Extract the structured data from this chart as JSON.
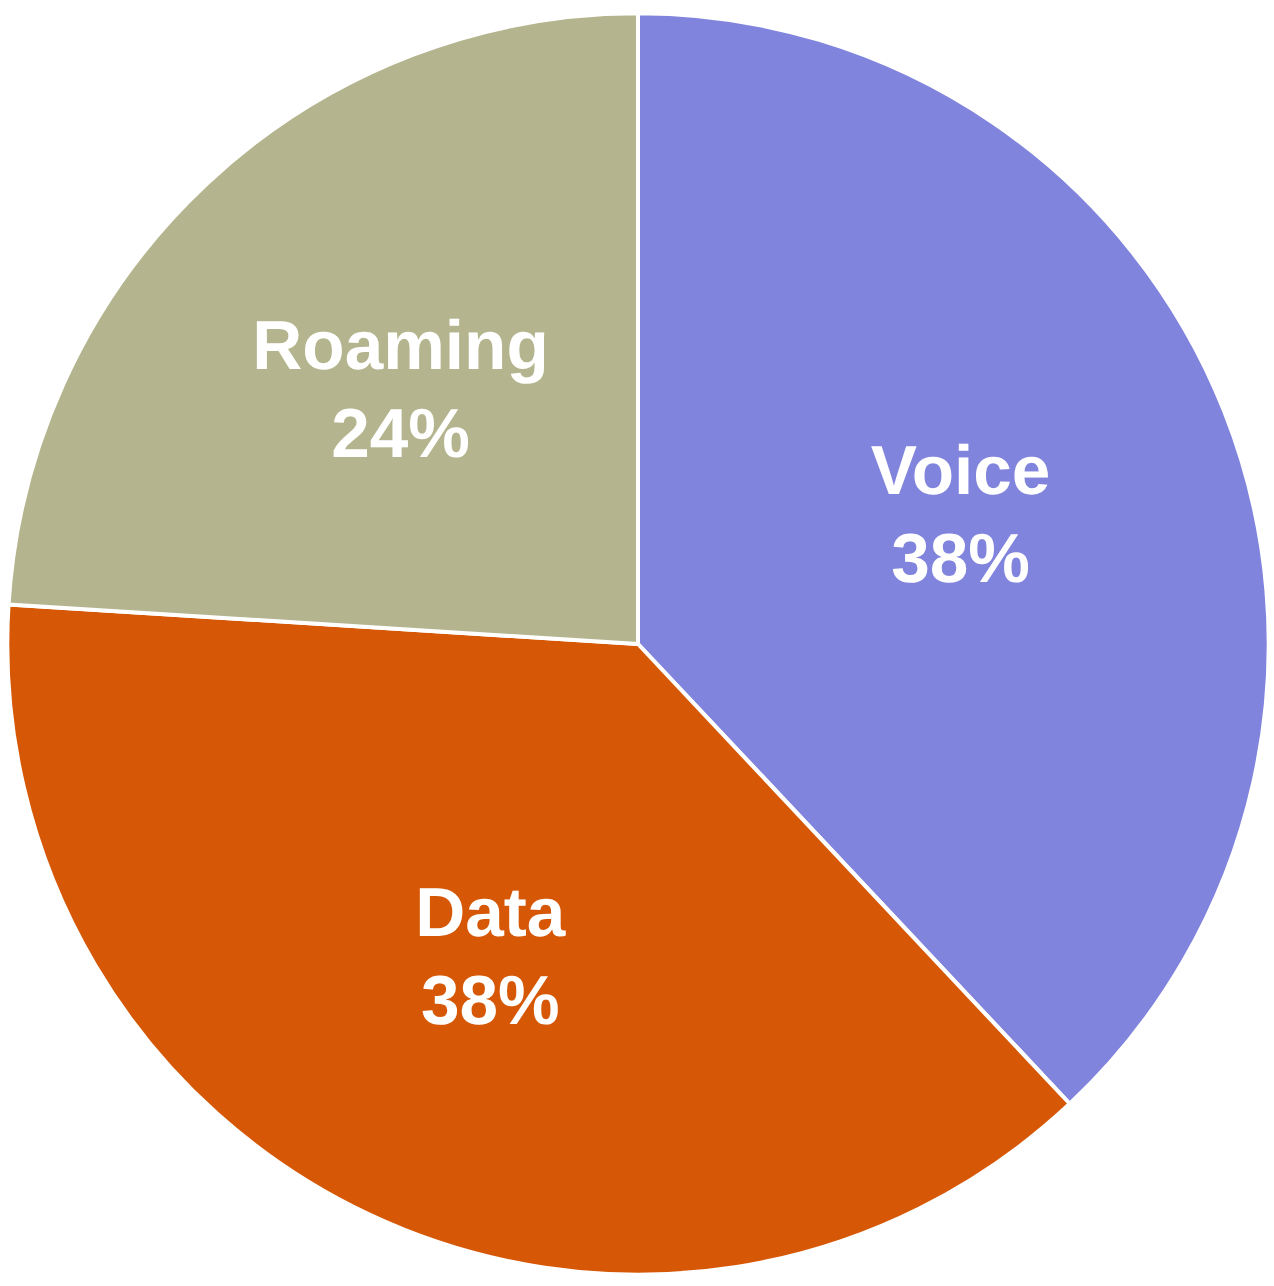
{
  "chart_data": {
    "type": "pie",
    "categories": [
      "Voice",
      "Data",
      "Roaming"
    ],
    "values": [
      38,
      38,
      24
    ],
    "colors": [
      "#8084dc",
      "#d65806",
      "#b4b48e"
    ],
    "value_labels": [
      "38%",
      "38%",
      "24%"
    ]
  }
}
